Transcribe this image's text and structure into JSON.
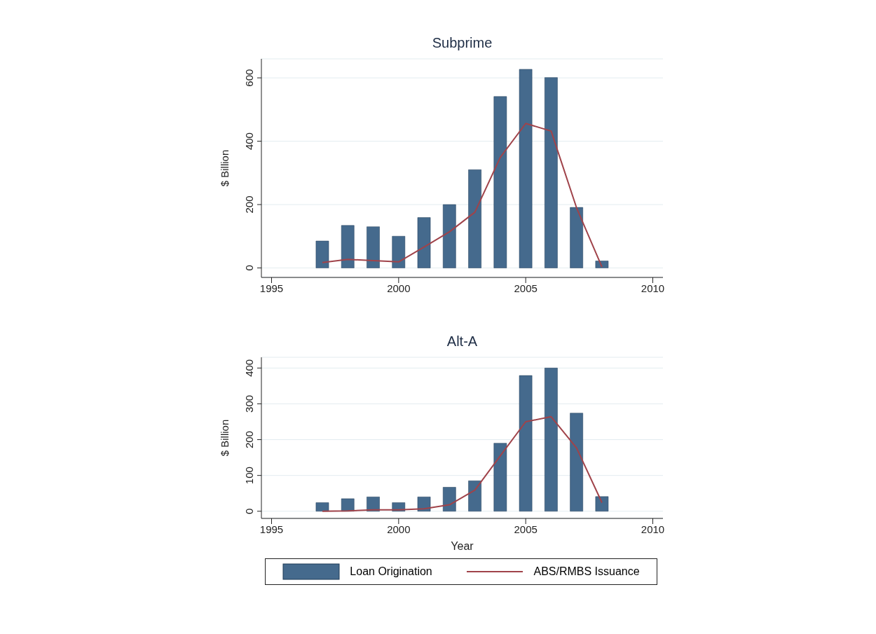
{
  "chart_data": [
    {
      "type": "bar",
      "title": "Subprime",
      "ylabel": "$ Billion",
      "x": [
        1997,
        1998,
        1999,
        2000,
        2001,
        2002,
        2003,
        2004,
        2005,
        2006,
        2007,
        2008
      ],
      "xlim": [
        1994.6,
        2010.4
      ],
      "xticks": [
        1995,
        2000,
        2005,
        2010
      ],
      "ylim": [
        -30,
        660
      ],
      "yticks": [
        0,
        200,
        400,
        600
      ],
      "grid": "y",
      "legend": false,
      "series": [
        {
          "color": "#456a8d",
          "values": [
            85,
            134,
            130,
            100,
            159,
            200,
            310,
            541,
            627,
            601,
            191,
            22
          ]
        },
        {
          "type": "line",
          "color": "#a0434a",
          "values": [
            17,
            27,
            23,
            19,
            66,
            114,
            176,
            349,
            456,
            432,
            190,
            3
          ]
        }
      ]
    },
    {
      "type": "bar",
      "title": "Alt-A",
      "ylabel": "$ Billion",
      "xlabel": "Year",
      "x": [
        1997,
        1998,
        1999,
        2000,
        2001,
        2002,
        2003,
        2004,
        2005,
        2006,
        2007,
        2008
      ],
      "xlim": [
        1994.6,
        2010.4
      ],
      "xticks": [
        1995,
        2000,
        2005,
        2010
      ],
      "ylim": [
        -20,
        430
      ],
      "yticks": [
        0,
        100,
        200,
        300,
        400
      ],
      "grid": "y",
      "legend": "bottom",
      "series": [
        {
          "name": "Loan Origination",
          "color": "#456a8d",
          "values": [
            24,
            35,
            40,
            24,
            40,
            67,
            85,
            190,
            379,
            400,
            274,
            41
          ]
        },
        {
          "type": "line",
          "name": "ABS/RMBS Issuance",
          "color": "#a0434a",
          "values": [
            0,
            1,
            4,
            4,
            7,
            18,
            59,
            155,
            250,
            264,
            177,
            24
          ]
        }
      ]
    }
  ]
}
